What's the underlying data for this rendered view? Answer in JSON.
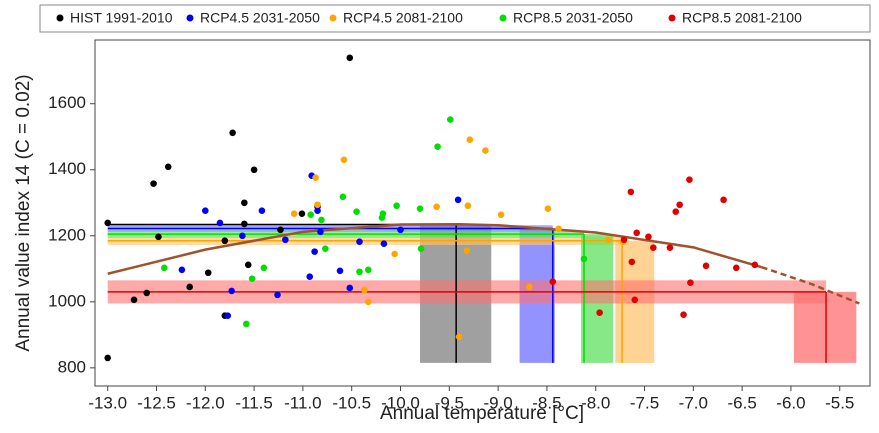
{
  "chart_data": {
    "type": "scatter",
    "xlabel": "Annual temperature [°C]",
    "ylabel": "Annual value index 14 (C = 0.02)",
    "xlim": [
      -13.13,
      -5.19
    ],
    "ylim": [
      745,
      1793
    ],
    "xticks": [
      {
        "value": -13,
        "label": "-13.0"
      },
      -12.5,
      {
        "value": -12,
        "label": "-12.0"
      },
      -11.5,
      {
        "value": -11,
        "label": "-11.0"
      },
      -10.5,
      {
        "value": -10,
        "label": "-10.0"
      },
      -9.5,
      {
        "value": -9,
        "label": "-9.0"
      },
      -8.5,
      {
        "value": -8,
        "label": "-8.0"
      },
      -7.5,
      {
        "value": -7,
        "label": "-7.0"
      },
      -6.5,
      {
        "value": -6,
        "label": "-6.0"
      },
      -5.5
    ],
    "yticks": [
      800,
      1000,
      1200,
      1400,
      1600
    ],
    "box_floor": 815,
    "series": [
      {
        "name": "HIST 1991-2010",
        "color": "#000000",
        "box_color": "#808080",
        "x": [
          -13.0,
          -13.0,
          -12.73,
          -12.6,
          -12.53,
          -12.48,
          -12.38,
          -12.16,
          -11.97,
          -11.8,
          -11.8,
          -11.72,
          -11.6,
          -11.6,
          -11.56,
          -11.5,
          -11.23,
          -11.01,
          -10.85,
          -10.52
        ],
        "values": [
          1239,
          830,
          1006,
          1027,
          1358,
          1197,
          1409,
          1045,
          1088,
          1185,
          958,
          1512,
          1300,
          1236,
          1112,
          1400,
          1218,
          1267,
          1288,
          1739
        ],
        "hline": 1234,
        "vline": -9.43,
        "vband": [
          -9.8,
          -9.07
        ]
      },
      {
        "name": "RCP4.5 2031-2050",
        "color": "#0000ff",
        "box_color": "#6f6fff",
        "x": [
          -12.0,
          -11.85,
          -11.62,
          -11.42,
          -12.24,
          -11.77,
          -11.73,
          -11.26,
          -11.18,
          -10.91,
          -10.88,
          -10.93,
          -10.82,
          -10.85,
          -10.62,
          -10.52,
          -10.42,
          -10.17,
          -10.0,
          -9.41
        ],
        "values": [
          1276,
          1239,
          1200,
          1276,
          1097,
          958,
          1033,
          1021,
          1188,
          1382,
          1152,
          1076,
          1212,
          1276,
          1094,
          1042,
          1182,
          1176,
          1218,
          1309
        ],
        "hline": 1222,
        "hband": [
          1212,
          1232
        ],
        "vline": -8.44,
        "vband": [
          -8.78,
          -8.42
        ]
      },
      {
        "name": "RCP4.5 2081-2100",
        "color": "#ffa500",
        "box_color": "#ffc46f",
        "x": [
          -11.09,
          -10.87,
          -10.85,
          -10.58,
          -10.37,
          -10.33,
          -10.06,
          -9.63,
          -9.4,
          -9.32,
          -9.29,
          -9.31,
          -9.13,
          -8.97,
          -8.68,
          -8.49,
          -8.38,
          -7.87,
          -7.72
        ],
        "values": [
          1267,
          1376,
          1294,
          1430,
          1036,
          1000,
          1145,
          1288,
          894,
          1155,
          1491,
          1291,
          1458,
          1264,
          1045,
          1282,
          1221,
          1188,
          1182
        ],
        "hline": 1185,
        "hband": [
          1172,
          1198
        ],
        "vline": -7.73,
        "vband": [
          -7.8,
          -7.4
        ]
      },
      {
        "name": "RCP8.5 2031-2050",
        "color": "#00e000",
        "box_color": "#5fe05f",
        "x": [
          -12.42,
          -11.58,
          -11.52,
          -11.4,
          -10.92,
          -10.81,
          -10.77,
          -10.59,
          -10.45,
          -10.42,
          -10.33,
          -10.19,
          -10.18,
          -10.04,
          -9.8,
          -9.79,
          -9.62,
          -9.49,
          -8.12
        ],
        "values": [
          1103,
          933,
          1070,
          1103,
          1264,
          1248,
          1161,
          1318,
          1273,
          1091,
          1097,
          1255,
          1267,
          1291,
          1282,
          1161,
          1470,
          1552,
          1130
        ],
        "hline": 1205,
        "hband": [
          1194,
          1216
        ],
        "vline": -8.12,
        "vband": [
          -8.15,
          -7.82
        ]
      },
      {
        "name": "RCP8.5 2081-2100",
        "color": "#e00000",
        "box_color": "#ff6f6f",
        "x": [
          -8.44,
          -7.96,
          -7.63,
          -7.71,
          -7.6,
          -7.64,
          -7.58,
          -7.46,
          -7.41,
          -7.24,
          -7.18,
          -7.14,
          -7.1,
          -7.04,
          -7.03,
          -6.87,
          -6.69,
          -6.56,
          -6.37
        ],
        "values": [
          1061,
          967,
          1121,
          1188,
          1006,
          1333,
          1209,
          1197,
          1164,
          1164,
          1273,
          1294,
          961,
          1370,
          1058,
          1109,
          1309,
          1103,
          1112
        ],
        "hline": 1030,
        "hband": [
          995,
          1065
        ],
        "vline": -5.64,
        "vband": [
          -5.97,
          -5.33
        ]
      }
    ],
    "curve": {
      "color": "#a0522d",
      "x": [
        -13.0,
        -12.0,
        -11.0,
        -10.0,
        -9.4,
        -9.0,
        -8.0,
        -7.0,
        -6.3
      ],
      "values": [
        1085,
        1158,
        1212,
        1234,
        1235,
        1232,
        1210,
        1165,
        1105
      ],
      "dashed_x": [
        -6.3,
        -5.8,
        -5.3
      ],
      "dashed_values": [
        1105,
        1055,
        995
      ]
    }
  }
}
